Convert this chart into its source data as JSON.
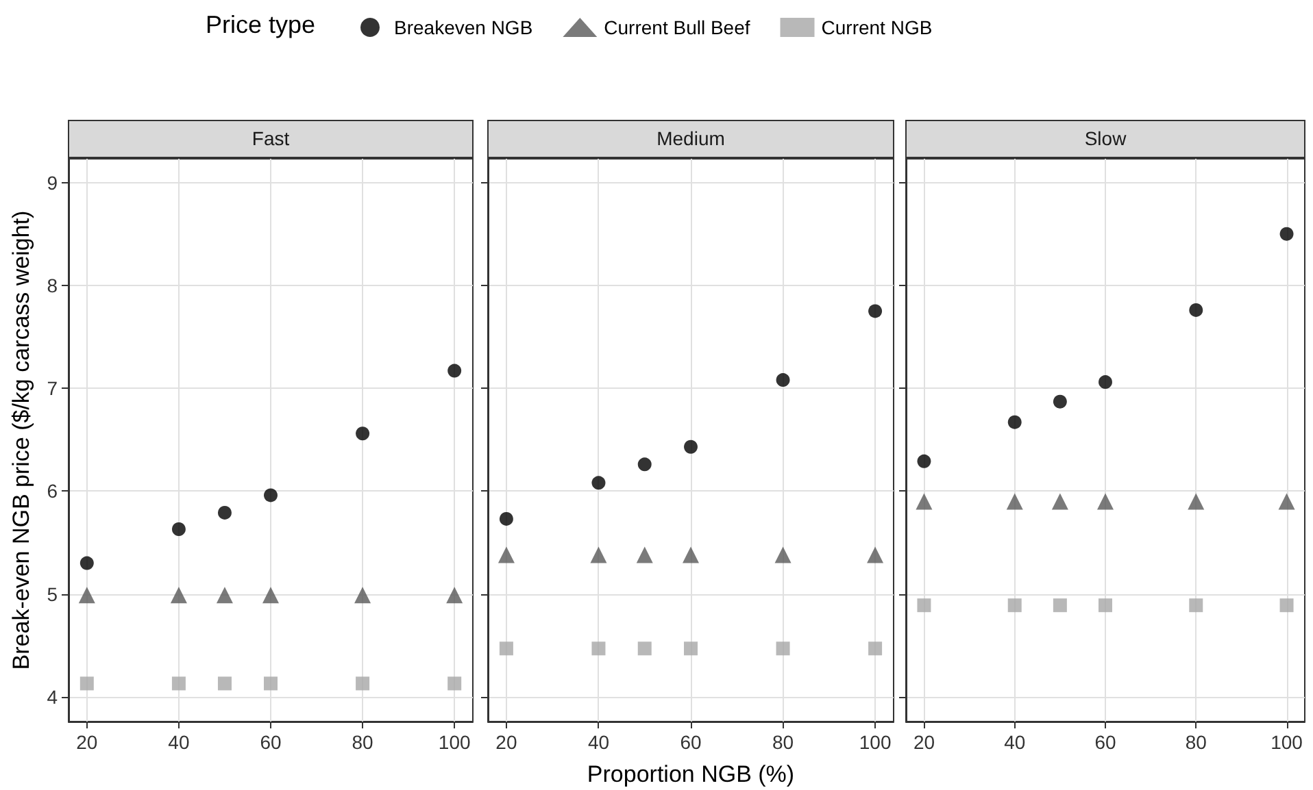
{
  "chart_data": [
    {
      "type": "scatter",
      "title": "Fast",
      "ylabel": "Break-even NGB price ($/kg carcass weight)",
      "legend_title": "Price type",
      "legend": "top",
      "grid": true,
      "x": [
        20,
        40,
        50,
        60,
        80,
        100
      ],
      "xlim": [
        16,
        104
      ],
      "xticks": [
        20,
        40,
        60,
        80,
        100
      ],
      "ylim": [
        3.76,
        9.23
      ],
      "yticks": [
        4,
        5,
        6,
        7,
        8,
        9
      ],
      "series": [
        {
          "name": "Breakeven NGB",
          "color": "#000000",
          "marker": "circle",
          "values": [
            5.3,
            5.63,
            5.79,
            5.96,
            6.56,
            7.17
          ]
        },
        {
          "name": "Current Bull Beef",
          "color": "#595959",
          "marker": "triangle",
          "values": [
            4.99,
            4.99,
            4.99,
            4.99,
            4.99,
            4.99
          ]
        },
        {
          "name": "Current NGB",
          "color": "#a6a6a6",
          "marker": "square",
          "values": [
            4.13,
            4.13,
            4.13,
            4.13,
            4.13,
            4.13
          ]
        }
      ]
    },
    {
      "type": "scatter",
      "title": "Medium",
      "xlabel": "Proportion NGB (%)",
      "grid": true,
      "tick_labels": "x",
      "x": [
        20,
        40,
        50,
        60,
        80,
        100
      ],
      "xlim": [
        16,
        104
      ],
      "xticks": [
        20,
        40,
        60,
        80,
        100
      ],
      "ylim": [
        3.76,
        9.23
      ],
      "yticks": [
        4,
        5,
        6,
        7,
        8,
        9
      ],
      "series": [
        {
          "color": "#000000",
          "marker": "circle",
          "values": [
            5.73,
            6.08,
            6.26,
            6.43,
            7.08,
            7.75
          ]
        },
        {
          "color": "#595959",
          "marker": "triangle",
          "values": [
            5.38,
            5.38,
            5.38,
            5.38,
            5.38,
            5.38
          ]
        },
        {
          "color": "#a6a6a6",
          "marker": "square",
          "values": [
            4.47,
            4.47,
            4.47,
            4.47,
            4.47,
            4.47
          ]
        }
      ]
    },
    {
      "type": "scatter",
      "title": "Slow",
      "grid": true,
      "tick_labels": "x",
      "x": [
        20,
        40,
        50,
        60,
        80,
        100
      ],
      "xlim": [
        16,
        104
      ],
      "xticks": [
        20,
        40,
        60,
        80,
        100
      ],
      "ylim": [
        3.76,
        9.23
      ],
      "yticks": [
        4,
        5,
        6,
        7,
        8,
        9
      ],
      "series": [
        {
          "color": "#000000",
          "marker": "circle",
          "values": [
            6.29,
            6.67,
            6.87,
            7.06,
            7.76,
            8.5
          ]
        },
        {
          "color": "#595959",
          "marker": "triangle",
          "values": [
            5.9,
            5.9,
            5.9,
            5.9,
            5.9,
            5.9
          ]
        },
        {
          "color": "#a6a6a6",
          "marker": "square",
          "values": [
            4.89,
            4.89,
            4.89,
            4.89,
            4.89,
            4.89
          ]
        }
      ]
    }
  ]
}
